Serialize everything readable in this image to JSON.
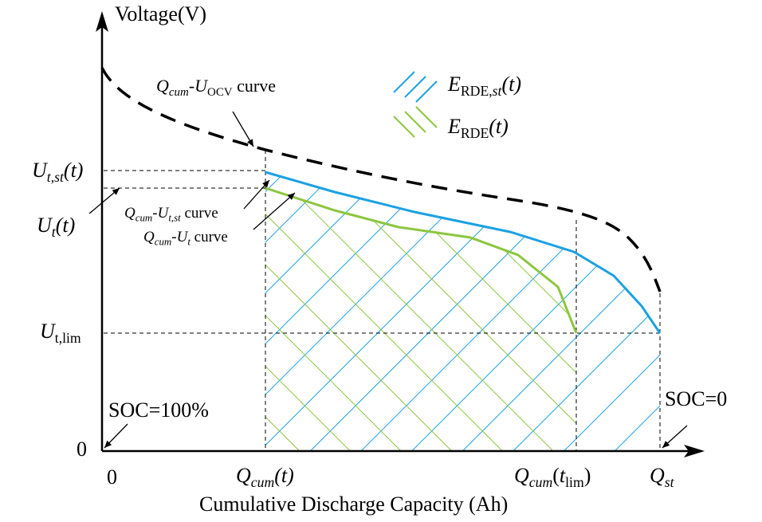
{
  "axes": {
    "y_label": "Voltage(V)",
    "x_label": "Cumulative Discharge Capacity (Ah)",
    "origin_y": "0",
    "origin_x": "0"
  },
  "y_ticks": {
    "ut_st": {
      "main": "U",
      "sub": "t,st",
      "paren": "(t)"
    },
    "ut": {
      "main": "U",
      "sub": "t",
      "paren": "(t)"
    },
    "ut_lim": {
      "main": "U",
      "sub": "t,lim"
    }
  },
  "x_ticks": {
    "qcum_t": {
      "main": "Q",
      "sub": "cum",
      "paren": "(t)"
    },
    "qcum_tlim": {
      "main": "Q",
      "sub": "cum",
      "open": "(",
      "t": "t",
      "tsub": "lim",
      "close": ")"
    },
    "qst": {
      "main": "Q",
      "sub": "st"
    }
  },
  "annotations": {
    "ocv_curve": {
      "q": "Q",
      "q_sub": "cum",
      "dash": "-",
      "u": "U",
      "u_sub": "OCV",
      "suffix": " curve"
    },
    "ut_st_curve": {
      "q": "Q",
      "q_sub": "cum",
      "dash": "-",
      "u": "U",
      "u_sub": "t,st",
      "suffix": " curve"
    },
    "ut_curve": {
      "q": "Q",
      "q_sub": "cum",
      "dash": "-",
      "u": "U",
      "u_sub": "t",
      "suffix": " curve"
    },
    "soc_100": "SOC=100%",
    "soc_0": "SOC=0"
  },
  "legend": {
    "e_rde_st": {
      "main": "E",
      "sub": "RDE,",
      "sub_it": "st",
      "paren": "(t)"
    },
    "e_rde": {
      "main": "E",
      "sub": "RDE",
      "paren": "(t)"
    }
  },
  "colors": {
    "blue": "#1ba1e2",
    "green": "#8cc63f",
    "black": "#000000"
  }
}
